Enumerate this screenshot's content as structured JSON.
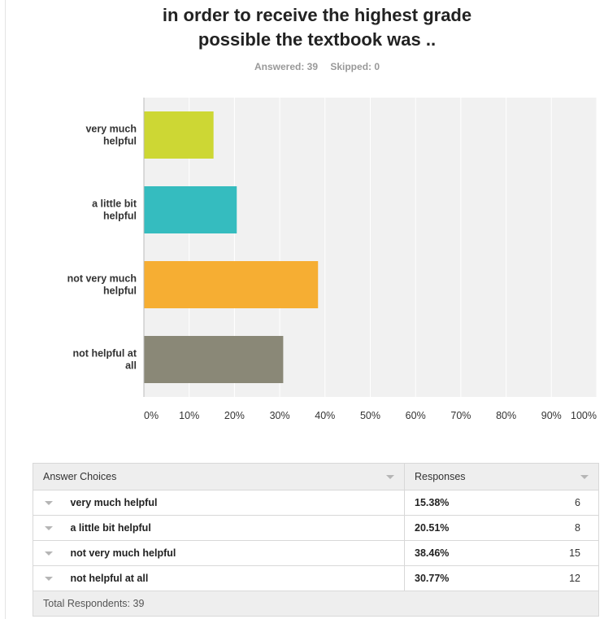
{
  "title_line1": "in order to receive the highest grade",
  "title_line2": "possible the textbook was ..",
  "answered": "Answered: 39",
  "skipped": "Skipped: 0",
  "colors": {
    "plot_bg": "#f1f1f1",
    "grid": "#ffffff",
    "bars": [
      "#cdd734",
      "#35bcbf",
      "#f6ae33",
      "#8a8877"
    ]
  },
  "chart_data": {
    "type": "bar",
    "orientation": "horizontal",
    "categories": [
      [
        "very much",
        "helpful"
      ],
      [
        "a little bit",
        "helpful"
      ],
      [
        "not very much",
        "helpful"
      ],
      [
        "not helpful at",
        "all"
      ]
    ],
    "values": [
      15.38,
      20.51,
      38.46,
      30.77
    ],
    "xlim": [
      0,
      100
    ],
    "ticks": [
      0,
      10,
      20,
      30,
      40,
      50,
      60,
      70,
      80,
      90,
      100
    ],
    "tick_labels": [
      "0%",
      "10%",
      "20%",
      "30%",
      "40%",
      "50%",
      "60%",
      "70%",
      "80%",
      "90%",
      "100%"
    ],
    "title": "in order to receive the highest grade possible the textbook was ..",
    "xlabel": "",
    "ylabel": ""
  },
  "table": {
    "header_choice": "Answer Choices",
    "header_responses": "Responses",
    "rows": [
      {
        "choice": "very much helpful",
        "pct": "15.38%",
        "count": "6"
      },
      {
        "choice": "a little bit helpful",
        "pct": "20.51%",
        "count": "8"
      },
      {
        "choice": "not very much helpful",
        "pct": "38.46%",
        "count": "15"
      },
      {
        "choice": "not helpful at all",
        "pct": "30.77%",
        "count": "12"
      }
    ],
    "total": "Total Respondents: 39"
  }
}
